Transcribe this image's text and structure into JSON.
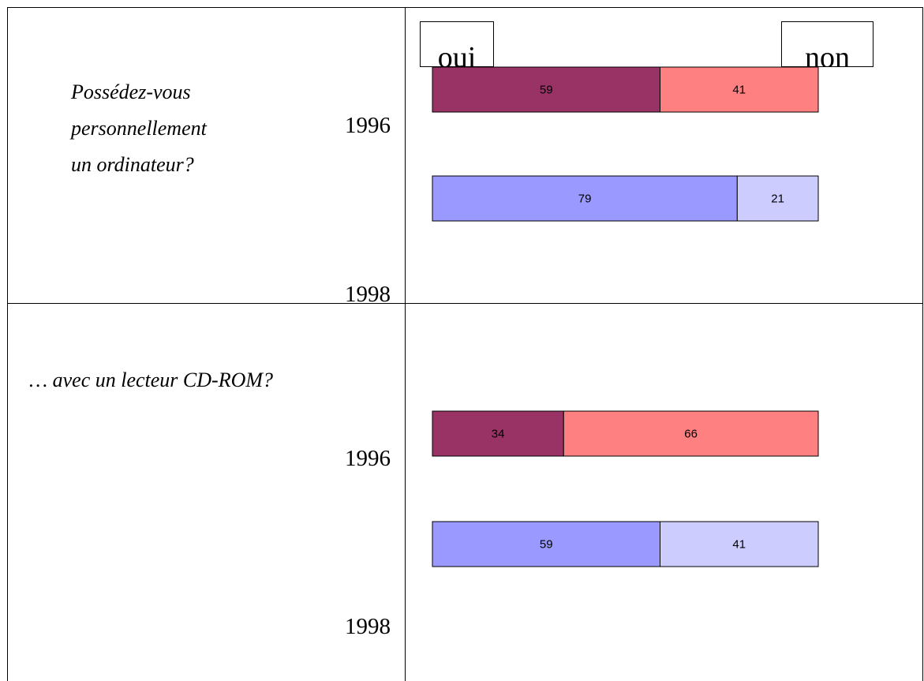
{
  "chart_data": {
    "type": "bar",
    "orientation": "horizontal",
    "stacked": true,
    "legend": [
      "oui",
      "non"
    ],
    "xlim": [
      0,
      100
    ],
    "groups": [
      {
        "question": [
          "Possédez-vous",
          "personnellement",
          "un ordinateur?"
        ],
        "bars": [
          {
            "year": "1996",
            "values": [
              59,
              41
            ],
            "colors": [
              "#993366",
              "#ff8080"
            ]
          },
          {
            "year": "1998",
            "values": [
              79,
              21
            ],
            "colors": [
              "#9999ff",
              "#ccccff"
            ]
          }
        ]
      },
      {
        "question": [
          "… avec un lecteur CD-ROM?"
        ],
        "bars": [
          {
            "year": "1996",
            "values": [
              34,
              66
            ],
            "colors": [
              "#993366",
              "#ff8080"
            ]
          },
          {
            "year": "1998",
            "values": [
              59,
              41
            ],
            "colors": [
              "#9999ff",
              "#ccccff"
            ]
          }
        ]
      }
    ]
  }
}
